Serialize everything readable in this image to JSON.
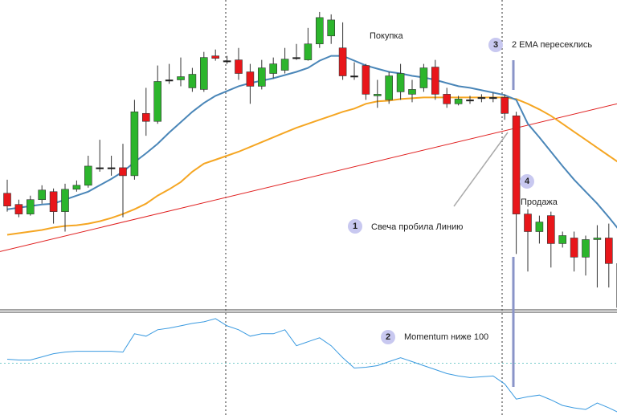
{
  "chart_data": {
    "type": "candlestick",
    "categories": [
      null,
      null,
      null,
      null,
      null,
      null,
      null,
      null,
      null,
      null,
      null,
      null,
      null,
      null,
      null,
      null,
      null,
      null,
      null,
      null,
      null,
      null,
      null,
      null,
      null,
      null,
      null,
      null,
      null,
      null,
      null,
      null,
      null,
      null,
      null,
      null,
      null,
      null,
      null,
      null,
      null,
      null,
      null,
      null,
      null,
      null,
      null,
      null,
      null,
      null,
      null,
      null,
      null,
      null
    ],
    "open": [
      158,
      144,
      132,
      150,
      160,
      135,
      163,
      168,
      190,
      190,
      190,
      180,
      258,
      248,
      300,
      300,
      290,
      288,
      330,
      324,
      325,
      310,
      292,
      308,
      312,
      328,
      325,
      345,
      355,
      340,
      305,
      318,
      280,
      275,
      285,
      282,
      290,
      316,
      282,
      270,
      275,
      278,
      278,
      278,
      255,
      132,
      110,
      130,
      95,
      102,
      78,
      100,
      102,
      70
    ],
    "high": [
      175,
      150,
      155,
      168,
      164,
      170,
      174,
      205,
      225,
      205,
      220,
      275,
      290,
      318,
      320,
      328,
      315,
      335,
      338,
      330,
      340,
      320,
      325,
      328,
      340,
      345,
      365,
      385,
      382,
      372,
      322,
      320,
      300,
      310,
      320,
      300,
      320,
      325,
      290,
      280,
      280,
      282,
      284,
      282,
      260,
      138,
      130,
      135,
      110,
      110,
      105,
      118,
      120,
      80
    ],
    "low": [
      135,
      128,
      130,
      145,
      120,
      110,
      160,
      165,
      185,
      180,
      128,
      175,
      230,
      245,
      295,
      292,
      285,
      285,
      324,
      320,
      300,
      270,
      288,
      302,
      308,
      325,
      324,
      340,
      345,
      300,
      300,
      275,
      265,
      270,
      275,
      272,
      285,
      275,
      265,
      268,
      270,
      272,
      272,
      250,
      82,
      60,
      95,
      65,
      90,
      60,
      55,
      40,
      40,
      10
    ],
    "close": [
      142,
      132,
      150,
      162,
      135,
      163,
      168,
      192,
      190,
      190,
      180,
      260,
      248,
      298,
      300,
      304,
      307,
      328,
      327,
      324,
      308,
      292,
      315,
      320,
      326,
      328,
      345,
      378,
      375,
      305,
      305,
      282,
      282,
      305,
      308,
      288,
      315,
      282,
      270,
      276,
      275,
      278,
      278,
      258,
      132,
      110,
      122,
      95,
      105,
      78,
      100,
      102,
      70,
      15
    ],
    "up_color": "#2cb52c",
    "down_color": "#e8161a",
    "ylim": [
      10,
      400
    ],
    "ema_fast": {
      "color": "#4a86b8",
      "values": [
        138,
        140,
        142,
        144,
        145,
        150,
        155,
        160,
        168,
        176,
        185,
        197,
        208,
        220,
        234,
        247,
        260,
        271,
        280,
        286,
        292,
        296,
        299,
        302,
        306,
        310,
        315,
        324,
        330,
        330,
        324,
        318,
        314,
        310,
        308,
        305,
        303,
        300,
        296,
        292,
        290,
        287,
        284,
        281,
        275,
        245,
        228,
        210,
        192,
        175,
        160,
        145,
        128,
        110
      ]
    },
    "ema_slow": {
      "color": "#f5a623",
      "values": [
        106,
        108,
        110,
        112,
        115,
        117,
        118,
        120,
        123,
        127,
        132,
        138,
        145,
        155,
        163,
        172,
        185,
        195,
        200,
        205,
        210,
        216,
        222,
        228,
        234,
        240,
        245,
        250,
        255,
        260,
        264,
        270,
        273,
        274,
        276,
        277,
        278,
        278,
        278,
        278,
        278,
        278,
        278,
        278,
        276,
        270,
        263,
        255,
        245,
        235,
        225,
        215,
        205,
        195
      ]
    },
    "trendline": {
      "color": "#e02020",
      "values": [
        85,
        270
      ]
    },
    "momentum": {
      "color": "#3a9ae0",
      "values": [
        105,
        104,
        104,
        108,
        112,
        114,
        115,
        115,
        115,
        115,
        114,
        137,
        134,
        142,
        144,
        147,
        150,
        152,
        156,
        147,
        142,
        134,
        137,
        137,
        142,
        122,
        127,
        132,
        122,
        107,
        94,
        95,
        97,
        102,
        107,
        102,
        97,
        92,
        87,
        84,
        82,
        83,
        84,
        74,
        55,
        58,
        60,
        54,
        47,
        44,
        42,
        50,
        44,
        37
      ],
      "ylim": [
        35,
        164
      ],
      "reference": 100
    },
    "labels": {
      "buy": "Покупка",
      "sell": "Продажа"
    },
    "annotations": [
      {
        "marker": "1",
        "text": "Свеча пробила Линию"
      },
      {
        "marker": "2",
        "text": "Momentum ниже 100"
      },
      {
        "marker": "3",
        "text": "2 EMA пересеклись"
      },
      {
        "marker": "4"
      }
    ]
  }
}
